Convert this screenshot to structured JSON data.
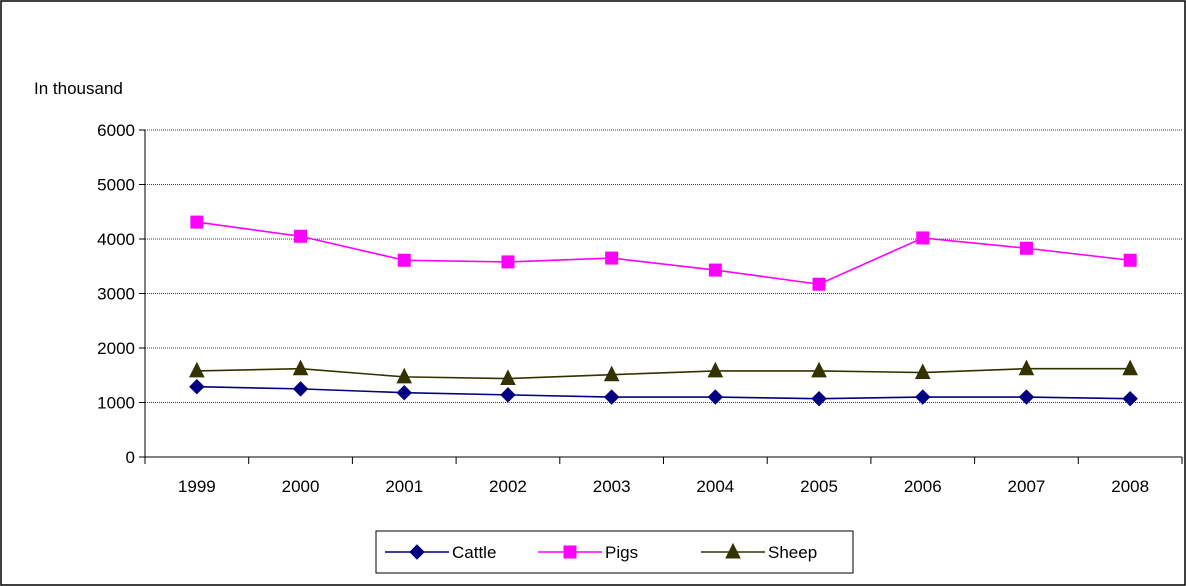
{
  "chart_data": {
    "type": "line",
    "ylabel": "In thousand",
    "categories": [
      "1999",
      "2000",
      "2001",
      "2002",
      "2003",
      "2004",
      "2005",
      "2006",
      "2007",
      "2008"
    ],
    "ylim": [
      0,
      6000
    ],
    "yticks": [
      0,
      1000,
      2000,
      3000,
      4000,
      5000,
      6000
    ],
    "grid": true,
    "legend_position": "bottom",
    "series": [
      {
        "name": "Cattle",
        "color": "#000080",
        "marker": "diamond",
        "values": [
          1290,
          1250,
          1180,
          1140,
          1100,
          1100,
          1070,
          1100,
          1100,
          1070
        ]
      },
      {
        "name": "Pigs",
        "color": "#FF00FF",
        "marker": "square",
        "values": [
          4310,
          4050,
          3610,
          3580,
          3650,
          3430,
          3170,
          4020,
          3830,
          3610
        ]
      },
      {
        "name": "Sheep",
        "color": "#333300",
        "marker": "triangle",
        "values": [
          1580,
          1620,
          1470,
          1440,
          1510,
          1580,
          1580,
          1550,
          1620,
          1620
        ]
      }
    ]
  }
}
